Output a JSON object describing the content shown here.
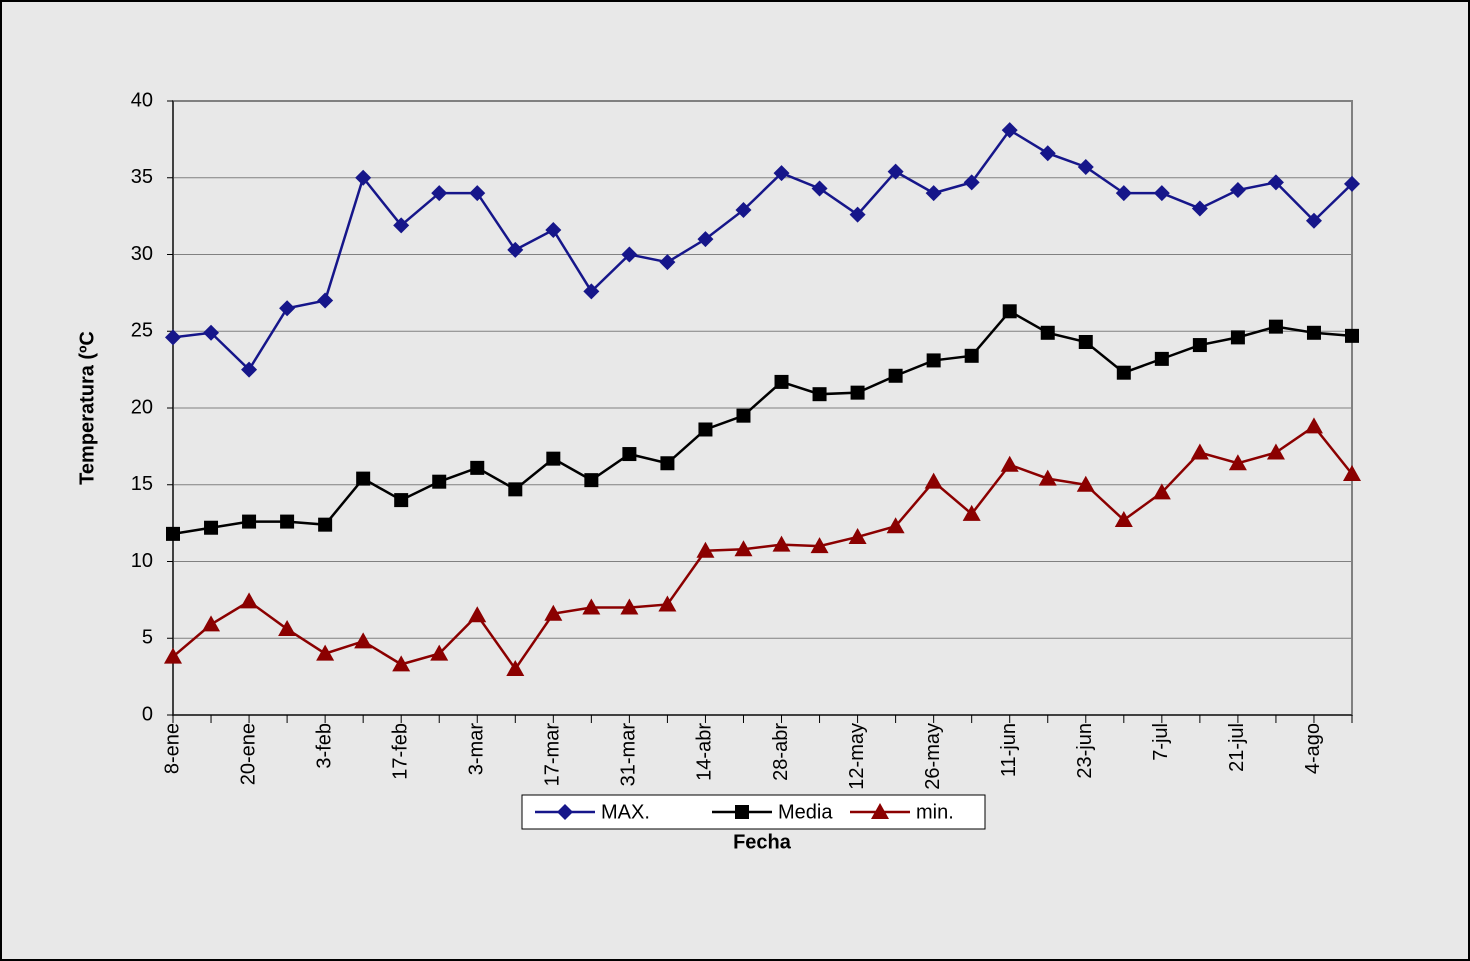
{
  "chart_data": {
    "type": "line",
    "x_label": "Fecha",
    "y_label": "Temperatura (ºC",
    "categories": [
      "8-ene",
      null,
      "20-ene",
      null,
      "3-feb",
      null,
      "17-feb",
      null,
      "3-mar",
      null,
      "17-mar",
      null,
      "31-mar",
      null,
      "14-abr",
      null,
      "28-abr",
      null,
      "12-may",
      null,
      "26-may",
      null,
      "11-jun",
      null,
      "23-jun",
      null,
      "7-jul",
      null,
      "21-jul",
      null,
      "4-ago",
      null
    ],
    "series": [
      {
        "name": "MAX.",
        "color": "#16168a",
        "marker": "diamond",
        "values": [
          24.6,
          24.9,
          22.5,
          26.5,
          27.0,
          35.0,
          31.9,
          34.0,
          34.0,
          30.3,
          31.6,
          27.6,
          30.0,
          29.5,
          31.0,
          32.9,
          35.3,
          34.3,
          32.6,
          35.4,
          34.0,
          34.7,
          38.1,
          36.6,
          35.7,
          34.0,
          34.0,
          33.0,
          34.2,
          34.7,
          32.2,
          34.6
        ]
      },
      {
        "name": "Media",
        "color": "#000000",
        "marker": "square",
        "values": [
          11.8,
          12.2,
          12.6,
          12.6,
          12.4,
          15.4,
          14.0,
          15.2,
          16.1,
          14.7,
          16.7,
          15.3,
          17.0,
          16.4,
          18.6,
          19.5,
          21.7,
          20.9,
          21.0,
          22.1,
          23.1,
          23.4,
          26.3,
          24.9,
          24.3,
          22.3,
          23.2,
          24.1,
          24.6,
          25.3,
          24.9,
          24.7
        ]
      },
      {
        "name": "min.",
        "color": "#8b0000",
        "marker": "triangle",
        "values": [
          3.8,
          5.9,
          7.4,
          5.6,
          4.0,
          4.8,
          3.3,
          4.0,
          6.5,
          3.0,
          6.6,
          7.0,
          7.0,
          7.2,
          10.7,
          10.8,
          11.1,
          11.0,
          11.6,
          12.3,
          15.2,
          13.1,
          16.3,
          15.4,
          15.0,
          12.7,
          14.5,
          17.1,
          16.4,
          17.1,
          18.8,
          15.7
        ]
      }
    ],
    "ylim": [
      0,
      40
    ],
    "yticks": [
      0,
      5,
      10,
      15,
      20,
      25,
      30,
      35,
      40
    ],
    "grid": true,
    "legend": "bottom"
  }
}
